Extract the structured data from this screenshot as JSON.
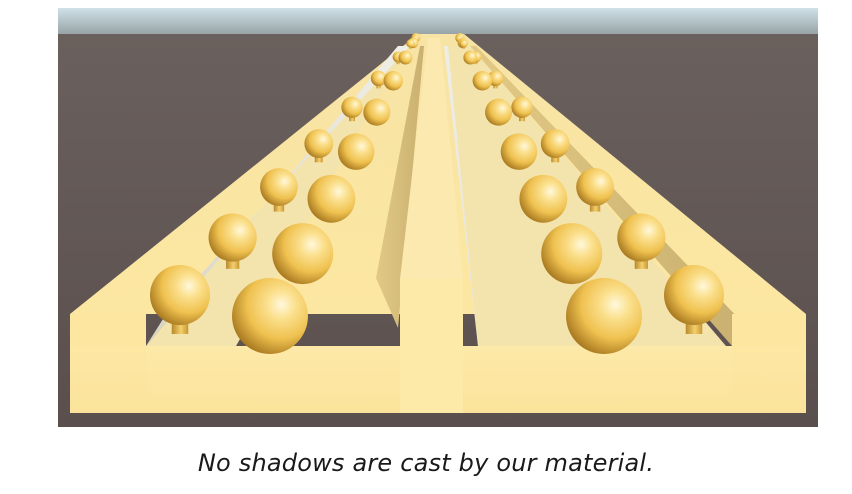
{
  "figure": {
    "caption": "No shadows are cast by our material.",
    "colors": {
      "sky_top": "#c8dde3",
      "sky_horizon": "#9aa7ab",
      "ground": "#5f5452",
      "slab_top": "#fae6a0",
      "slab_front": "#fde9a6",
      "groove_wall_lit": "#ecebe2",
      "groove_wall_dark": "#d2cdb4",
      "sphere_highlight": "#fff6d4",
      "sphere_mid": "#f4c95a",
      "sphere_dark": "#a9781d"
    }
  }
}
